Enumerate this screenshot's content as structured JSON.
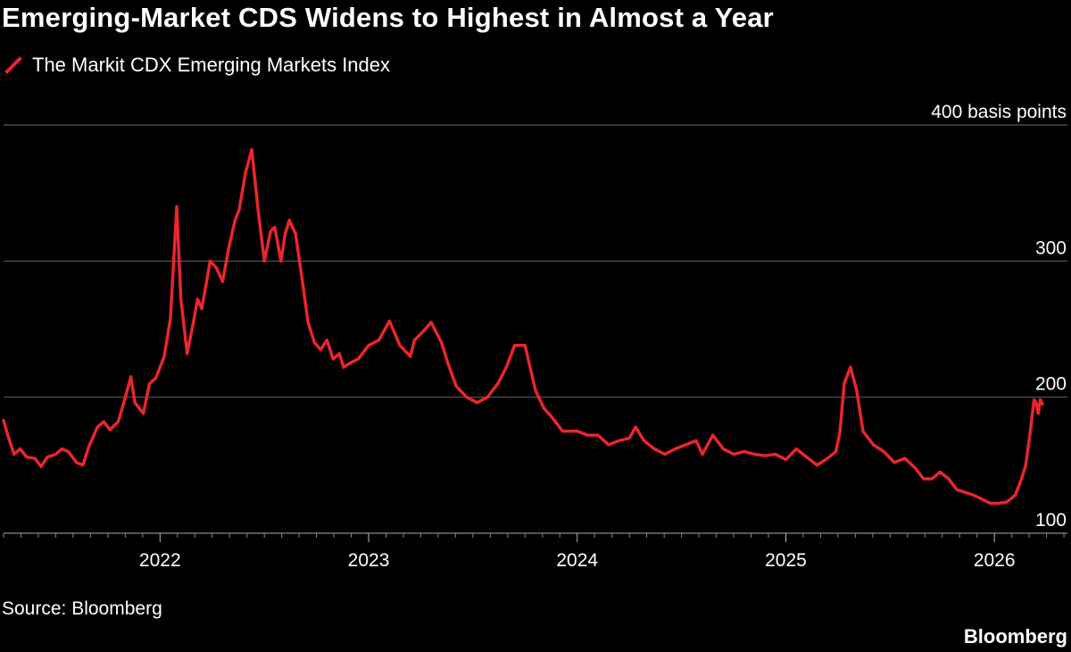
{
  "title": "Emerging-Market CDS Widens to Highest in Almost a Year",
  "legend": {
    "label": "The Markit CDX Emerging Markets Index"
  },
  "source": "Source: Bloomberg",
  "brand": "Bloomberg",
  "colors": {
    "series": "#e8262b",
    "grid": "#5a5a5a",
    "text": "#ffffff",
    "background": "#000000"
  },
  "chart_data": {
    "type": "line",
    "title": "Emerging-Market CDS Widens to Highest in Almost a Year",
    "xlabel": "",
    "ylabel": "basis points",
    "ylim": [
      100,
      400
    ],
    "xlim": [
      2021.25,
      2026.35
    ],
    "y_ticks": [
      {
        "value": 400,
        "label": "400 basis points"
      },
      {
        "value": 300,
        "label": "300"
      },
      {
        "value": 200,
        "label": "200"
      },
      {
        "value": 100,
        "label": "100"
      }
    ],
    "x_ticks": [
      {
        "value": 2022,
        "label": "2022"
      },
      {
        "value": 2023,
        "label": "2023"
      },
      {
        "value": 2024,
        "label": "2024"
      },
      {
        "value": 2025,
        "label": "2025"
      },
      {
        "value": 2026,
        "label": "2026"
      }
    ],
    "series": [
      {
        "name": "The Markit CDX Emerging Markets Index",
        "x": [
          2021.25,
          2021.27,
          2021.3,
          2021.33,
          2021.36,
          2021.4,
          2021.43,
          2021.46,
          2021.5,
          2021.53,
          2021.56,
          2021.6,
          2021.63,
          2021.66,
          2021.7,
          2021.73,
          2021.76,
          2021.8,
          2021.83,
          2021.86,
          2021.88,
          2021.9,
          2021.92,
          2021.95,
          2021.98,
          2022.02,
          2022.05,
          2022.08,
          2022.1,
          2022.13,
          2022.16,
          2022.18,
          2022.2,
          2022.22,
          2022.24,
          2022.27,
          2022.3,
          2022.33,
          2022.36,
          2022.38,
          2022.41,
          2022.44,
          2022.47,
          2022.5,
          2022.53,
          2022.55,
          2022.58,
          2022.6,
          2022.62,
          2022.65,
          2022.68,
          2022.71,
          2022.74,
          2022.77,
          2022.8,
          2022.83,
          2022.86,
          2022.88,
          2022.91,
          2022.95,
          2023.0,
          2023.05,
          2023.1,
          2023.15,
          2023.2,
          2023.22,
          2023.26,
          2023.3,
          2023.35,
          2023.38,
          2023.42,
          2023.47,
          2023.52,
          2023.57,
          2023.62,
          2023.66,
          2023.7,
          2023.75,
          2023.8,
          2023.84,
          2023.88,
          2023.93,
          2024.0,
          2024.05,
          2024.1,
          2024.15,
          2024.2,
          2024.25,
          2024.28,
          2024.32,
          2024.37,
          2024.42,
          2024.47,
          2024.52,
          2024.57,
          2024.6,
          2024.65,
          2024.7,
          2024.75,
          2024.8,
          2024.85,
          2024.9,
          2024.95,
          2025.0,
          2025.05,
          2025.1,
          2025.15,
          2025.2,
          2025.24,
          2025.26,
          2025.28,
          2025.31,
          2025.34,
          2025.37,
          2025.42,
          2025.47,
          2025.52,
          2025.57,
          2025.62,
          2025.66,
          2025.7,
          2025.74,
          2025.78,
          2025.82,
          2025.86,
          2025.9,
          2025.94,
          2025.98,
          2026.02,
          2026.06,
          2026.1,
          2026.13,
          2026.15,
          2026.17,
          2026.19,
          2026.2,
          2026.21,
          2026.22,
          2026.23
        ],
        "values": [
          183,
          172,
          158,
          162,
          156,
          155,
          149,
          156,
          158,
          162,
          160,
          152,
          150,
          164,
          178,
          182,
          176,
          182,
          198,
          215,
          196,
          192,
          188,
          210,
          214,
          230,
          258,
          340,
          272,
          232,
          255,
          272,
          265,
          282,
          300,
          295,
          285,
          310,
          330,
          338,
          365,
          382,
          338,
          300,
          322,
          325,
          300,
          320,
          330,
          320,
          288,
          255,
          240,
          235,
          242,
          228,
          232,
          222,
          225,
          228,
          238,
          242,
          256,
          238,
          230,
          242,
          248,
          255,
          240,
          225,
          208,
          200,
          196,
          200,
          210,
          222,
          238,
          238,
          205,
          192,
          185,
          175,
          175,
          172,
          172,
          165,
          168,
          170,
          178,
          168,
          162,
          158,
          162,
          165,
          168,
          158,
          172,
          162,
          158,
          160,
          158,
          157,
          158,
          154,
          162,
          156,
          150,
          155,
          160,
          175,
          210,
          222,
          205,
          175,
          165,
          160,
          152,
          155,
          148,
          140,
          140,
          145,
          140,
          132,
          130,
          128,
          125,
          122,
          122,
          123,
          128,
          140,
          150,
          172,
          198,
          196,
          188,
          198,
          195
        ]
      }
    ]
  }
}
